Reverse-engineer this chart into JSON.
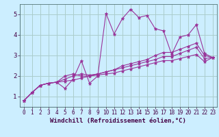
{
  "background_color": "#cceeff",
  "grid_color": "#aacccc",
  "line_color": "#993399",
  "xlabel": "Windchill (Refroidissement éolien,°C)",
  "xlabel_fontsize": 6.5,
  "xlim": [
    -0.5,
    23.5
  ],
  "ylim": [
    0.5,
    5.5
  ],
  "yticks": [
    1,
    2,
    3,
    4,
    5
  ],
  "xticks": [
    0,
    1,
    2,
    3,
    4,
    5,
    6,
    7,
    8,
    9,
    10,
    11,
    12,
    13,
    14,
    15,
    16,
    17,
    18,
    19,
    20,
    21,
    22,
    23
  ],
  "tick_fontsize": 5.5,
  "series": [
    [
      0.8,
      1.2,
      1.55,
      1.65,
      1.7,
      1.4,
      1.85,
      2.75,
      1.65,
      2.0,
      5.05,
      4.05,
      4.8,
      5.25,
      4.85,
      4.95,
      4.3,
      4.2,
      3.05,
      3.9,
      4.0,
      4.5,
      3.1,
      2.9
    ],
    [
      0.8,
      1.2,
      1.55,
      1.65,
      1.7,
      2.0,
      2.1,
      2.0,
      2.0,
      2.1,
      2.2,
      2.3,
      2.5,
      2.6,
      2.7,
      2.8,
      3.0,
      3.15,
      3.15,
      3.3,
      3.45,
      3.6,
      3.0,
      2.9
    ],
    [
      0.8,
      1.2,
      1.55,
      1.65,
      1.7,
      1.85,
      2.0,
      2.1,
      2.05,
      2.1,
      2.2,
      2.3,
      2.4,
      2.5,
      2.6,
      2.7,
      2.8,
      2.95,
      2.95,
      3.1,
      3.25,
      3.4,
      2.85,
      2.9
    ],
    [
      0.8,
      1.2,
      1.55,
      1.65,
      1.7,
      1.75,
      1.8,
      1.9,
      2.0,
      2.05,
      2.1,
      2.15,
      2.25,
      2.35,
      2.45,
      2.55,
      2.65,
      2.75,
      2.75,
      2.85,
      2.95,
      3.05,
      2.7,
      2.9
    ]
  ]
}
